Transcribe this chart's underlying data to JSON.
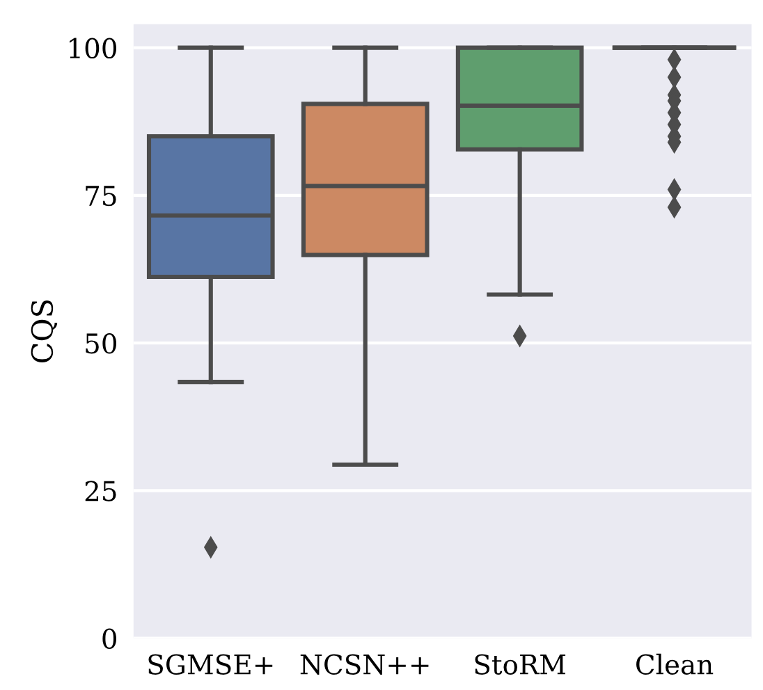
{
  "chart_data": {
    "type": "box",
    "ylabel": "CQS",
    "categories": [
      "SGMSE+",
      "NCSN++",
      "StoRM",
      "Clean"
    ],
    "colors": [
      "#5875a4",
      "#cc8963",
      "#5f9e6e",
      "#4c4c4c"
    ],
    "boxes": [
      {
        "low": 43.4,
        "q1": 61.2,
        "median": 71.6,
        "q3": 85.0,
        "high": 100,
        "outliers": [
          15.4
        ]
      },
      {
        "low": 29.4,
        "q1": 64.9,
        "median": 76.6,
        "q3": 90.5,
        "high": 100
      },
      {
        "low": 58.2,
        "q1": 82.8,
        "median": 90.2,
        "q3": 100,
        "high": 100,
        "outliers": [
          51.2
        ]
      },
      {
        "low": 100,
        "q1": 100,
        "median": 100,
        "q3": 100,
        "high": 100,
        "outliers": [
          98,
          95,
          92,
          91,
          89,
          87,
          85,
          84,
          76,
          73
        ]
      }
    ],
    "ylim": [
      0,
      104
    ],
    "yticks": [
      0,
      25,
      50,
      75,
      100
    ],
    "grid": "y",
    "marker": "diamond"
  }
}
